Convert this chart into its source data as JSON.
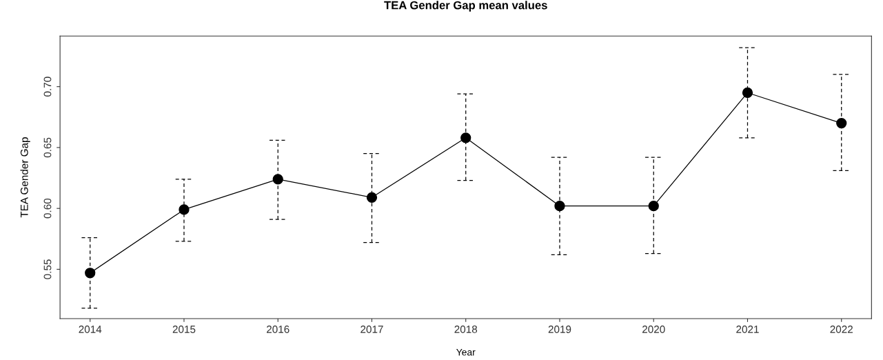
{
  "chart_data": {
    "type": "line",
    "title": "TEA Gender Gap mean values",
    "xlabel": "Year",
    "ylabel": "TEA Gender Gap",
    "x": [
      2014,
      2015,
      2016,
      2017,
      2018,
      2019,
      2020,
      2021,
      2022
    ],
    "series": [
      {
        "color": "#000000",
        "values": [
          0.547,
          0.599,
          0.624,
          0.609,
          0.658,
          0.602,
          0.602,
          0.695,
          0.67
        ],
        "errors": [
          [
            0.518,
            0.576
          ],
          [
            0.573,
            0.624
          ],
          [
            0.591,
            0.656
          ],
          [
            0.572,
            0.645
          ],
          [
            0.623,
            0.694
          ],
          [
            0.562,
            0.642
          ],
          [
            0.563,
            0.642
          ],
          [
            0.658,
            0.732
          ],
          [
            0.631,
            0.71
          ]
        ]
      }
    ],
    "xlim": [
      2013.68,
      2022.32
    ],
    "xticks": [
      2014,
      2015,
      2016,
      2017,
      2018,
      2019,
      2020,
      2021,
      2022
    ],
    "ylim": [
      0.5095,
      0.7416
    ],
    "yticks": [
      {
        "value": 0.55,
        "label": "0.55"
      },
      {
        "value": 0.6,
        "label": "0.60"
      },
      {
        "value": 0.65,
        "label": "0.65"
      },
      {
        "value": 0.7,
        "label": "0.70"
      }
    ],
    "marker": "circle",
    "line_style": "solid",
    "grid": false,
    "legend": false
  }
}
